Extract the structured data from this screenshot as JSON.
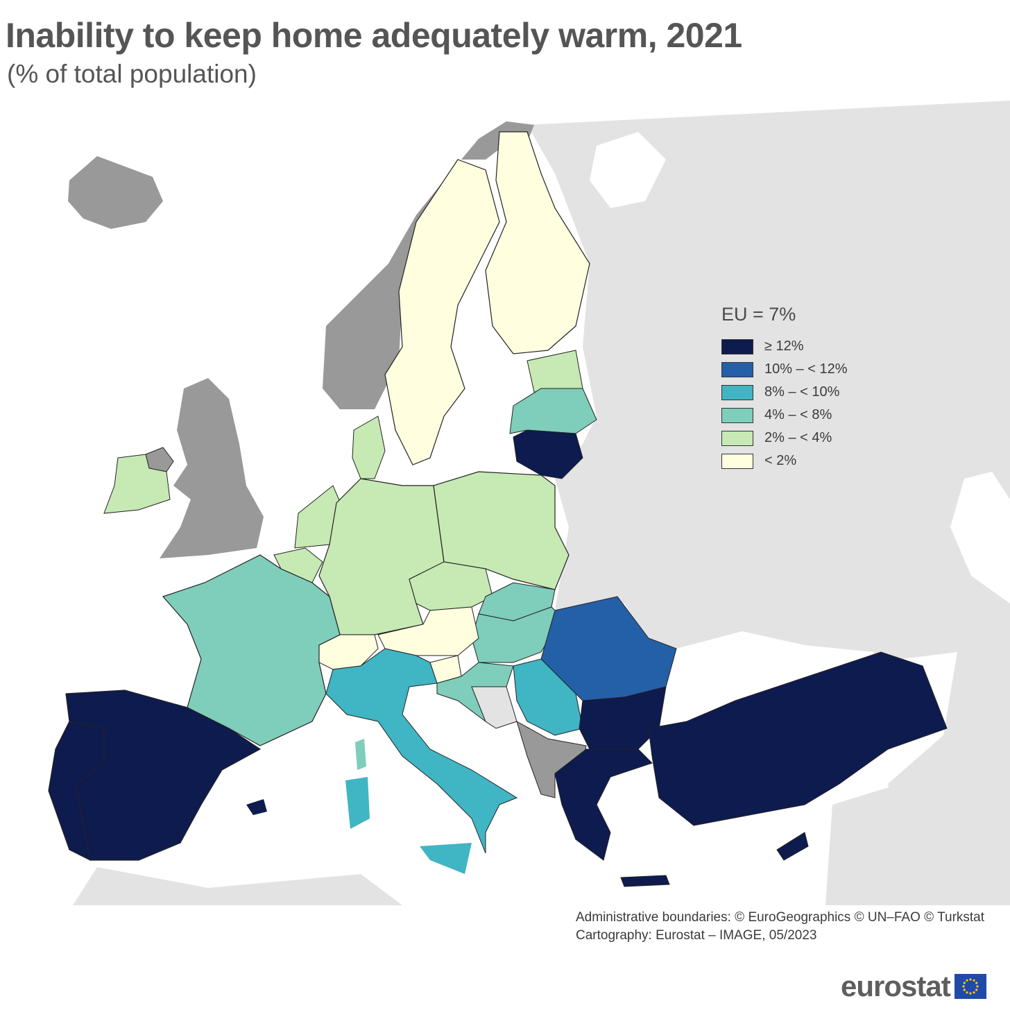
{
  "title": "Inability to keep home adequately warm, 2021",
  "subtitle": "(% of total population)",
  "legend": {
    "title": "EU = 7%",
    "items": [
      {
        "label": "≥ 12%",
        "color": "#0d1b4f"
      },
      {
        "label": "10% – < 12%",
        "color": "#2460a7"
      },
      {
        "label": "8% – < 10%",
        "color": "#40b5c4"
      },
      {
        "label": "4% – < 8%",
        "color": "#7fcdbb"
      },
      {
        "label": "2% – < 4%",
        "color": "#c7e9b4"
      },
      {
        "label": "< 2%",
        "color": "#ffffe0"
      }
    ]
  },
  "colors": {
    "no_data": "#999999",
    "non_eu": "#e3e3e3",
    "sea": "#ffffff",
    "not_available": "#e3e3e3"
  },
  "credits": {
    "line1": "Administrative boundaries: © EuroGeographics © UN–FAO © Turkstat",
    "line2": "Cartography: Eurostat – IMAGE, 05/2023"
  },
  "logo": {
    "text": "eurostat",
    "icon": "eu-flag-icon"
  }
}
